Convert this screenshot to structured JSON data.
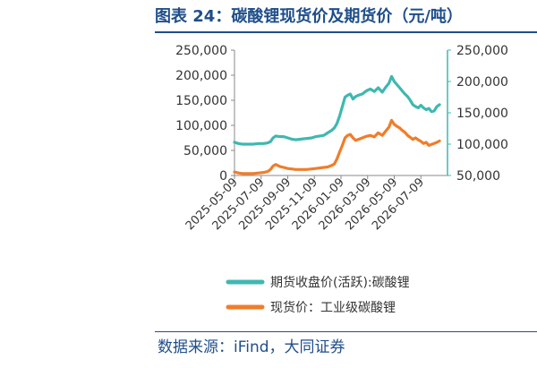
{
  "title": "图表 24：碳酸锂现货价及期货价（元/吨）",
  "source": "数据来源：iFind，大同证券",
  "chart_data": {
    "type": "line",
    "left_axis": {
      "ticks": [
        "250,000",
        "200,000",
        "150,000",
        "100,000",
        "50,000",
        "0"
      ],
      "min": 0,
      "max": 250000
    },
    "right_axis": {
      "ticks": [
        "250,000",
        "200,000",
        "150,000",
        "100,000",
        "50,000"
      ],
      "min": 50000,
      "max": 250000
    },
    "x_ticks": [
      "2025-05-09",
      "2025-07-09",
      "2025-09-09",
      "2025-11-09",
      "2026-01-09",
      "2026-03-09",
      "2026-05-09",
      "2026-07-09"
    ],
    "x_tick_positions": [
      0,
      2,
      4,
      6,
      8,
      10,
      12,
      14
    ],
    "x_range": [
      0,
      16
    ],
    "series": [
      {
        "name": "期货收盘价(活跃):碳酸锂",
        "axis": "right",
        "color": "#3fb8b0",
        "x": [
          0,
          0.3,
          0.6,
          1,
          1.4,
          1.8,
          2.2,
          2.5,
          2.7,
          2.9,
          3.1,
          3.4,
          3.7,
          4,
          4.3,
          4.6,
          5,
          5.4,
          5.8,
          6.1,
          6.4,
          6.7,
          7,
          7.3,
          7.5,
          7.7,
          7.9,
          8.1,
          8.3,
          8.5,
          8.7,
          8.9,
          9.1,
          9.3,
          9.6,
          9.9,
          10.2,
          10.5,
          10.8,
          11.1,
          11.4,
          11.6,
          11.8,
          12,
          12.2,
          12.4,
          12.6,
          12.8,
          13,
          13.2,
          13.4,
          13.6,
          13.8,
          14,
          14.2,
          14.4,
          14.6,
          14.8,
          15,
          15.2,
          15.4
        ],
        "values": [
          103000,
          101000,
          100000,
          100000,
          100000,
          101000,
          101000,
          102000,
          104000,
          110000,
          113000,
          112000,
          112000,
          110000,
          108000,
          107000,
          108000,
          109000,
          110000,
          112000,
          113000,
          114000,
          118000,
          122000,
          126000,
          133000,
          145000,
          160000,
          175000,
          178000,
          180000,
          172000,
          176000,
          178000,
          180000,
          185000,
          188000,
          184000,
          190000,
          183000,
          192000,
          197000,
          208000,
          200000,
          195000,
          190000,
          185000,
          180000,
          176000,
          170000,
          163000,
          160000,
          158000,
          162000,
          158000,
          155000,
          157000,
          152000,
          153000,
          160000,
          163000
        ]
      },
      {
        "name": "现货价：工业级碳酸锂",
        "axis": "left",
        "color": "#f07d2a",
        "x": [
          0,
          0.3,
          0.6,
          1,
          1.4,
          1.8,
          2.2,
          2.5,
          2.7,
          2.9,
          3.1,
          3.4,
          3.7,
          4,
          4.3,
          4.6,
          5,
          5.4,
          5.8,
          6.1,
          6.4,
          6.7,
          7,
          7.3,
          7.5,
          7.7,
          7.9,
          8.1,
          8.3,
          8.5,
          8.7,
          8.9,
          9.1,
          9.3,
          9.6,
          9.9,
          10.2,
          10.5,
          10.8,
          11.1,
          11.4,
          11.6,
          11.8,
          12,
          12.2,
          12.4,
          12.6,
          12.8,
          13,
          13.2,
          13.4,
          13.6,
          13.8,
          14,
          14.2,
          14.4,
          14.6,
          14.8,
          15,
          15.2,
          15.4
        ],
        "values": [
          7000,
          5000,
          4000,
          4000,
          4000,
          5000,
          6000,
          8000,
          12000,
          19000,
          22000,
          18000,
          16000,
          14000,
          13000,
          12000,
          12000,
          12000,
          13000,
          14000,
          15000,
          16000,
          17000,
          20000,
          23000,
          33000,
          47000,
          60000,
          75000,
          80000,
          82000,
          75000,
          70000,
          72000,
          75000,
          78000,
          80000,
          77000,
          85000,
          80000,
          90000,
          96000,
          110000,
          102000,
          98000,
          95000,
          90000,
          86000,
          80000,
          76000,
          72000,
          75000,
          71000,
          68000,
          64000,
          66000,
          60000,
          62000,
          64000,
          66000,
          69000
        ]
      }
    ],
    "legend": "bottom"
  }
}
